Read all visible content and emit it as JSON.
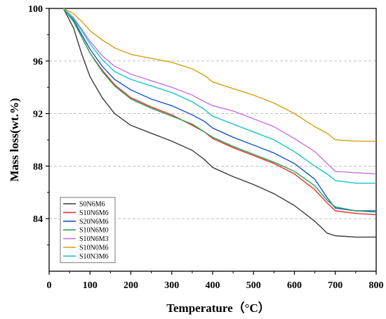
{
  "chart_data": {
    "type": "line",
    "xlabel": "Temperature（°C）",
    "ylabel": "Mass loss(wt.%)",
    "xlim": [
      0,
      800
    ],
    "ylim": [
      80,
      100
    ],
    "xticks": [
      0,
      100,
      200,
      300,
      400,
      500,
      600,
      700,
      800
    ],
    "yticks": [
      84,
      88,
      92,
      96,
      100
    ],
    "grid": "horizontal dashed",
    "legend_position": "bottom-left",
    "series": [
      {
        "name": "S0N6M6",
        "color": "#3a3a3a",
        "x": [
          35,
          60,
          80,
          100,
          130,
          160,
          200,
          250,
          300,
          350,
          380,
          400,
          450,
          500,
          550,
          600,
          650,
          680,
          700,
          750,
          800
        ],
        "y": [
          100,
          98.5,
          96.5,
          94.8,
          93.2,
          92.0,
          91.1,
          90.5,
          89.9,
          89.2,
          88.5,
          87.9,
          87.2,
          86.6,
          85.9,
          85.0,
          83.8,
          82.9,
          82.7,
          82.6,
          82.6
        ]
      },
      {
        "name": "S10N6M6",
        "color": "#ef2b2b",
        "x": [
          35,
          60,
          80,
          100,
          130,
          160,
          200,
          250,
          300,
          350,
          380,
          400,
          450,
          500,
          550,
          600,
          650,
          680,
          700,
          750,
          800
        ],
        "y": [
          100,
          99.0,
          97.8,
          96.6,
          95.3,
          94.2,
          93.2,
          92.5,
          91.9,
          91.1,
          90.6,
          90.1,
          89.4,
          88.8,
          88.2,
          87.4,
          86.2,
          85.2,
          84.6,
          84.4,
          84.3
        ]
      },
      {
        "name": "S20N6M6",
        "color": "#1a56c8",
        "x": [
          35,
          60,
          80,
          100,
          130,
          160,
          200,
          250,
          300,
          350,
          380,
          400,
          450,
          500,
          550,
          600,
          650,
          680,
          700,
          750,
          800
        ],
        "y": [
          100,
          99.1,
          98.0,
          96.9,
          95.6,
          94.6,
          93.8,
          93.1,
          92.6,
          91.9,
          91.4,
          90.9,
          90.2,
          89.6,
          89.0,
          88.2,
          87.0,
          85.6,
          84.8,
          84.6,
          84.6
        ]
      },
      {
        "name": "S10N6M0",
        "color": "#27a35a",
        "x": [
          35,
          60,
          80,
          100,
          130,
          160,
          200,
          250,
          300,
          350,
          380,
          400,
          450,
          500,
          550,
          600,
          650,
          680,
          700,
          750,
          800
        ],
        "y": [
          100,
          99.0,
          97.8,
          96.6,
          95.2,
          94.1,
          93.1,
          92.4,
          91.8,
          91.2,
          90.6,
          90.2,
          89.5,
          88.9,
          88.3,
          87.6,
          86.5,
          85.4,
          84.9,
          84.6,
          84.5
        ]
      },
      {
        "name": "S10N6M3",
        "color": "#c873e0",
        "x": [
          35,
          60,
          80,
          100,
          130,
          160,
          200,
          250,
          300,
          350,
          380,
          400,
          450,
          500,
          550,
          600,
          650,
          680,
          700,
          750,
          800
        ],
        "y": [
          100,
          99.3,
          98.4,
          97.5,
          96.4,
          95.6,
          95.0,
          94.5,
          94.0,
          93.4,
          92.9,
          92.6,
          92.2,
          91.6,
          91.0,
          90.1,
          89.1,
          88.2,
          87.6,
          87.5,
          87.4
        ]
      },
      {
        "name": "S10N0M6",
        "color": "#d4a011",
        "x": [
          35,
          60,
          80,
          100,
          130,
          160,
          200,
          250,
          300,
          350,
          380,
          400,
          450,
          500,
          550,
          600,
          650,
          680,
          700,
          750,
          800
        ],
        "y": [
          100,
          99.6,
          99.0,
          98.3,
          97.6,
          97.0,
          96.5,
          96.2,
          95.9,
          95.4,
          94.9,
          94.4,
          93.9,
          93.4,
          92.8,
          92.0,
          91.0,
          90.5,
          90.0,
          89.9,
          89.9
        ]
      },
      {
        "name": "S10N3M6",
        "color": "#17c4c8",
        "x": [
          35,
          60,
          80,
          100,
          130,
          160,
          200,
          250,
          300,
          350,
          380,
          400,
          450,
          500,
          550,
          600,
          650,
          680,
          700,
          750,
          800
        ],
        "y": [
          100,
          99.2,
          98.3,
          97.3,
          96.1,
          95.2,
          94.6,
          94.1,
          93.6,
          92.9,
          92.3,
          91.8,
          91.2,
          90.6,
          90.0,
          89.1,
          88.0,
          87.4,
          86.9,
          86.7,
          86.7
        ]
      }
    ]
  }
}
